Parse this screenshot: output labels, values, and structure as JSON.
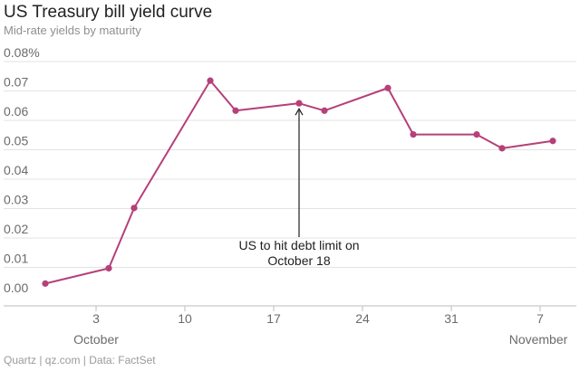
{
  "header": {
    "title": "US Treasury bill yield curve",
    "subtitle": "Mid-rate yields by maturity"
  },
  "footer": {
    "source": "Quartz | qz.com | Data: FactSet"
  },
  "colors": {
    "line": "#b5407a",
    "grid": "#e3e3e3",
    "axis": "#bdbdbd",
    "text": "#6b6b6b"
  },
  "chart_data": {
    "type": "line",
    "title": "US Treasury bill yield curve",
    "subtitle": "Mid-rate yields by maturity",
    "xlabel": "",
    "ylabel": "",
    "ylim": [
      0,
      0.08
    ],
    "grid": true,
    "x_tick_labels": [
      "3",
      "10",
      "17",
      "24",
      "31",
      "7"
    ],
    "x_month_labels": [
      "October",
      "November"
    ],
    "y_tick_labels": [
      "0.00",
      "0.01",
      "0.02",
      "0.03",
      "0.04",
      "0.05",
      "0.06",
      "0.07",
      "0.08%"
    ],
    "y_ticks": [
      0,
      0.01,
      0.02,
      0.03,
      0.04,
      0.05,
      0.06,
      0.07,
      0.08
    ],
    "x_ticks": [
      "2013-10-03",
      "2013-10-10",
      "2013-10-17",
      "2013-10-24",
      "2013-10-31",
      "2013-11-07"
    ],
    "xlim": [
      "2013-09-27",
      "2013-11-08"
    ],
    "series": [
      {
        "x": [
          "2013-09-29",
          "2013-10-04",
          "2013-10-06",
          "2013-10-12",
          "2013-10-14",
          "2013-10-19",
          "2013-10-21",
          "2013-10-26",
          "2013-10-28",
          "2013-11-02",
          "2013-11-04",
          "2013-11-08"
        ],
        "values": [
          0.0045,
          0.0097,
          0.0302,
          0.0735,
          0.0633,
          0.0658,
          0.0633,
          0.071,
          0.0552,
          0.0552,
          0.0505,
          0.053
        ]
      }
    ],
    "annotations": [
      {
        "text_line1": "US to hit debt limit on",
        "text_line2": "October 18",
        "x": "2013-10-19",
        "y": 0.0658
      }
    ]
  }
}
